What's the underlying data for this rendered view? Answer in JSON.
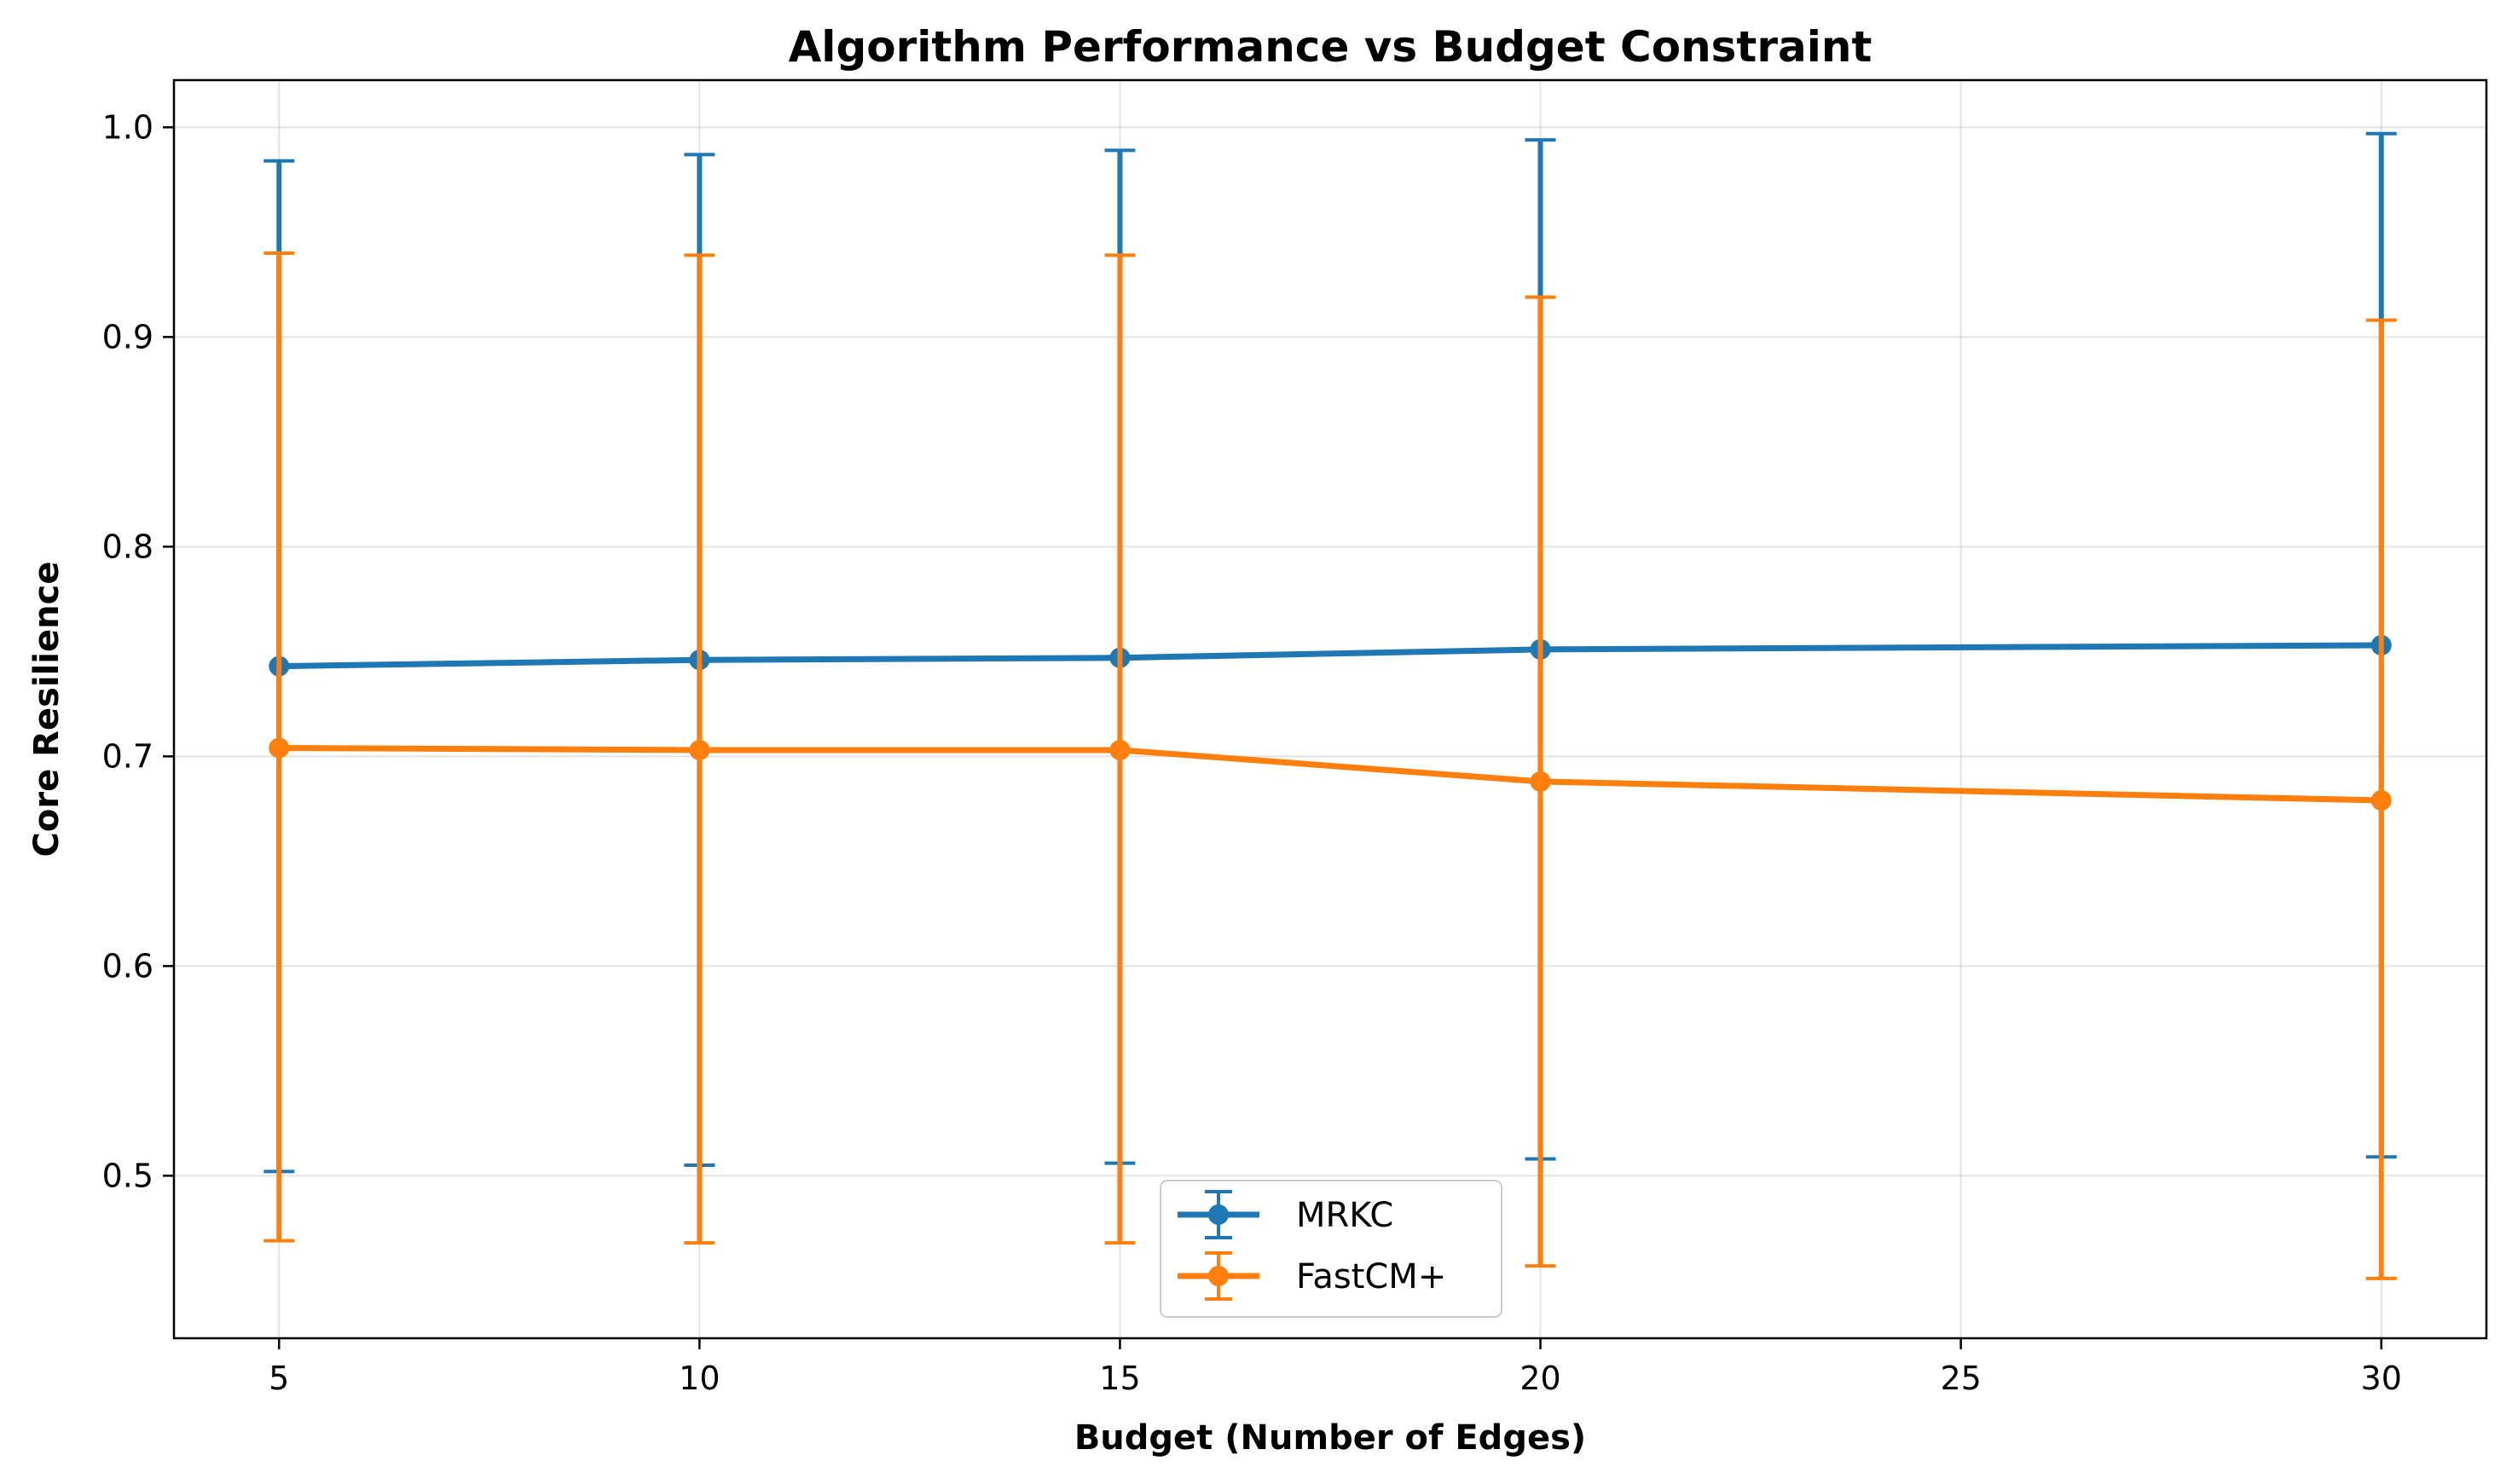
{
  "chart_data": {
    "type": "line",
    "title": "Algorithm Performance vs Budget Constraint",
    "xlabel": "Budget (Number of Edges)",
    "ylabel": "Core Resilience",
    "x": [
      5,
      10,
      15,
      20,
      30
    ],
    "xlim": [
      3.75,
      31.25
    ],
    "ylim": [
      0.4225,
      1.0225
    ],
    "xticks": [
      5,
      10,
      15,
      20,
      25,
      30
    ],
    "yticks": [
      0.5,
      0.6,
      0.7,
      0.8,
      0.9,
      1.0
    ],
    "xtick_labels": [
      "5",
      "10",
      "15",
      "20",
      "25",
      "30"
    ],
    "ytick_labels": [
      "0.5",
      "0.6",
      "0.7",
      "0.8",
      "0.9",
      "1.0"
    ],
    "grid": true,
    "legend_position": "bottom-center",
    "series": [
      {
        "name": "MRKC",
        "color": "#1f77b4",
        "values": [
          0.743,
          0.746,
          0.747,
          0.751,
          0.753
        ],
        "err_low": [
          0.502,
          0.505,
          0.506,
          0.508,
          0.509
        ],
        "err_high": [
          0.984,
          0.987,
          0.989,
          0.994,
          0.997
        ]
      },
      {
        "name": "FastCM+",
        "color": "#ff7f0e",
        "values": [
          0.704,
          0.703,
          0.703,
          0.688,
          0.679
        ],
        "err_low": [
          0.469,
          0.468,
          0.468,
          0.457,
          0.451
        ],
        "err_high": [
          0.94,
          0.939,
          0.939,
          0.919,
          0.908
        ]
      }
    ]
  }
}
